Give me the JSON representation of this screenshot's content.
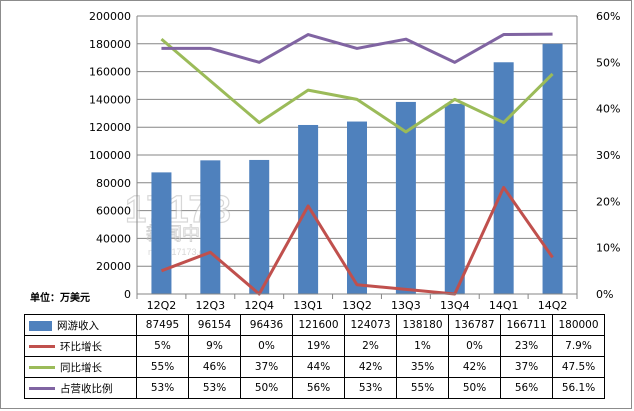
{
  "chart_data": {
    "type": "bar+line",
    "categories": [
      "12Q2",
      "12Q3",
      "12Q4",
      "13Q1",
      "13Q2",
      "13Q3",
      "13Q4",
      "14Q1",
      "14Q2"
    ],
    "unit_label": "单位：万美元",
    "left_axis": {
      "min": 0,
      "max": 200000,
      "step": 20000,
      "tick_labels": [
        "0",
        "20000",
        "40000",
        "60000",
        "80000",
        "100000",
        "120000",
        "140000",
        "160000",
        "180000",
        "200000"
      ]
    },
    "right_axis": {
      "min": 0,
      "max": 60,
      "step": 10,
      "tick_labels": [
        "0%",
        "10%",
        "20%",
        "30%",
        "40%",
        "50%",
        "60%"
      ]
    },
    "series": [
      {
        "name": "网游收入",
        "type": "bar",
        "axis": "left",
        "color": "#4f81bd",
        "values": [
          87495,
          96154,
          96436,
          121600,
          124073,
          138180,
          136787,
          166711,
          180000
        ],
        "labels": [
          "87495",
          "96154",
          "96436",
          "121600",
          "124073",
          "138180",
          "136787",
          "166711",
          "180000"
        ]
      },
      {
        "name": "环比增长",
        "type": "line",
        "axis": "right",
        "color": "#c0504d",
        "values": [
          5,
          9,
          0,
          19,
          2,
          1,
          0,
          23,
          7.9
        ],
        "labels": [
          "5%",
          "9%",
          "0%",
          "19%",
          "2%",
          "1%",
          "0%",
          "23%",
          "7.9%"
        ]
      },
      {
        "name": "同比增长",
        "type": "line",
        "axis": "right",
        "color": "#9bbb59",
        "values": [
          55,
          46,
          37,
          44,
          42,
          35,
          42,
          37,
          47.5
        ],
        "labels": [
          "55%",
          "46%",
          "37%",
          "44%",
          "42%",
          "35%",
          "42%",
          "37%",
          "47.5%"
        ]
      },
      {
        "name": "占营收比例",
        "type": "line",
        "axis": "right",
        "color": "#8064a2",
        "values": [
          53,
          53,
          50,
          56,
          53,
          55,
          50,
          56,
          56.1
        ],
        "labels": [
          "53%",
          "53%",
          "50%",
          "56%",
          "53%",
          "55%",
          "50%",
          "56%",
          "56.1%"
        ]
      }
    ],
    "watermark": {
      "logo": "17173",
      "text": "新闻中心",
      "url": "news.17173.com"
    },
    "legend": "data table below chart",
    "grid": "horizontal"
  }
}
